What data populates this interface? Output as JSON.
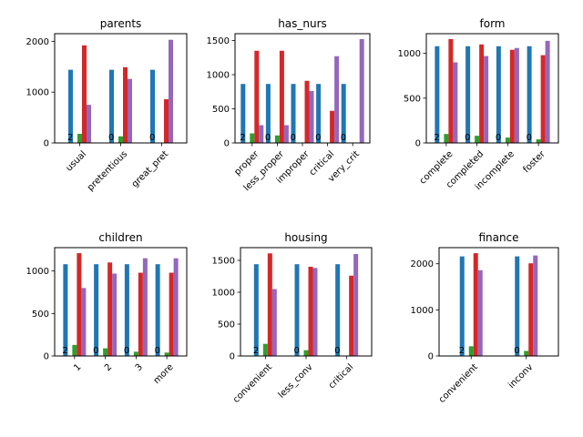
{
  "chart_data": [
    {
      "type": "bar",
      "title": "parents",
      "categories": [
        "usual",
        "pretentious",
        "great_pret"
      ],
      "ylim": [
        0,
        2150
      ],
      "yticks": [
        0,
        1000,
        2000
      ],
      "series": [
        {
          "values": [
            1440,
            1440,
            1440
          ],
          "color": "#1f77b4"
        },
        {
          "values": [
            2,
            0,
            0
          ],
          "color": "#ff7f0e"
        },
        {
          "values": [
            180,
            130,
            0
          ],
          "color": "#2ca02c"
        },
        {
          "values": [
            1920,
            1490,
            860
          ],
          "color": "#d62728"
        },
        {
          "values": [
            750,
            1260,
            2030
          ],
          "color": "#9467bd"
        }
      ],
      "bar_labels": [
        {
          "category": 0,
          "text": "2"
        },
        {
          "category": 1,
          "text": "0"
        },
        {
          "category": 2,
          "text": "0"
        }
      ]
    },
    {
      "type": "bar",
      "title": "has_nurs",
      "categories": [
        "proper",
        "less_proper",
        "improper",
        "critical",
        "very_crit"
      ],
      "ylim": [
        0,
        1600
      ],
      "yticks": [
        0,
        500,
        1000,
        1500
      ],
      "series": [
        {
          "values": [
            864,
            864,
            864,
            864,
            864
          ],
          "color": "#1f77b4"
        },
        {
          "values": [
            2,
            0,
            0,
            0,
            0
          ],
          "color": "#ff7f0e"
        },
        {
          "values": [
            140,
            110,
            0,
            0,
            0
          ],
          "color": "#2ca02c"
        },
        {
          "values": [
            1350,
            1350,
            910,
            470,
            0
          ],
          "color": "#d62728"
        },
        {
          "values": [
            260,
            260,
            760,
            1270,
            1520
          ],
          "color": "#9467bd"
        }
      ],
      "bar_labels": [
        {
          "category": 0,
          "text": "2"
        },
        {
          "category": 1,
          "text": "0"
        },
        {
          "category": 2,
          "text": "0"
        },
        {
          "category": 3,
          "text": "0"
        },
        {
          "category": 4,
          "text": "0"
        }
      ]
    },
    {
      "type": "bar",
      "title": "form",
      "categories": [
        "complete",
        "completed",
        "incomplete",
        "foster"
      ],
      "ylim": [
        0,
        1220
      ],
      "yticks": [
        0,
        500,
        1000
      ],
      "series": [
        {
          "values": [
            1080,
            1080,
            1080,
            1080
          ],
          "color": "#1f77b4"
        },
        {
          "values": [
            2,
            0,
            0,
            0
          ],
          "color": "#ff7f0e"
        },
        {
          "values": [
            100,
            80,
            60,
            40
          ],
          "color": "#2ca02c"
        },
        {
          "values": [
            1160,
            1100,
            1040,
            980
          ],
          "color": "#d62728"
        },
        {
          "values": [
            900,
            970,
            1060,
            1140
          ],
          "color": "#9467bd"
        }
      ],
      "bar_labels": [
        {
          "category": 0,
          "text": "2"
        },
        {
          "category": 1,
          "text": "0"
        },
        {
          "category": 2,
          "text": "0"
        },
        {
          "category": 3,
          "text": "0"
        }
      ]
    },
    {
      "type": "bar",
      "title": "children",
      "categories": [
        "1",
        "2",
        "3",
        "more"
      ],
      "ylim": [
        0,
        1275
      ],
      "yticks": [
        0,
        500,
        1000
      ],
      "series": [
        {
          "values": [
            1080,
            1080,
            1080,
            1080
          ],
          "color": "#1f77b4"
        },
        {
          "values": [
            2,
            0,
            0,
            0
          ],
          "color": "#ff7f0e"
        },
        {
          "values": [
            130,
            90,
            50,
            40
          ],
          "color": "#2ca02c"
        },
        {
          "values": [
            1210,
            1100,
            980,
            980
          ],
          "color": "#d62728"
        },
        {
          "values": [
            800,
            970,
            1150,
            1150
          ],
          "color": "#9467bd"
        }
      ],
      "bar_labels": [
        {
          "category": 0,
          "text": "2"
        },
        {
          "category": 1,
          "text": "0"
        },
        {
          "category": 2,
          "text": "0"
        },
        {
          "category": 3,
          "text": "0"
        }
      ]
    },
    {
      "type": "bar",
      "title": "housing",
      "categories": [
        "convenient",
        "less_conv",
        "critical"
      ],
      "ylim": [
        0,
        1700
      ],
      "yticks": [
        0,
        500,
        1000,
        1500
      ],
      "series": [
        {
          "values": [
            1440,
            1440,
            1440
          ],
          "color": "#1f77b4"
        },
        {
          "values": [
            2,
            0,
            0
          ],
          "color": "#ff7f0e"
        },
        {
          "values": [
            190,
            90,
            0
          ],
          "color": "#2ca02c"
        },
        {
          "values": [
            1610,
            1400,
            1260
          ],
          "color": "#d62728"
        },
        {
          "values": [
            1050,
            1380,
            1600
          ],
          "color": "#9467bd"
        }
      ],
      "bar_labels": [
        {
          "category": 0,
          "text": "2"
        },
        {
          "category": 1,
          "text": "0"
        },
        {
          "category": 2,
          "text": "0"
        }
      ]
    },
    {
      "type": "bar",
      "title": "finance",
      "categories": [
        "convenient",
        "inconv"
      ],
      "ylim": [
        0,
        2350
      ],
      "yticks": [
        0,
        1000,
        2000
      ],
      "series": [
        {
          "values": [
            2160,
            2160
          ],
          "color": "#1f77b4"
        },
        {
          "values": [
            2,
            0
          ],
          "color": "#ff7f0e"
        },
        {
          "values": [
            210,
            110
          ],
          "color": "#2ca02c"
        },
        {
          "values": [
            2230,
            2010
          ],
          "color": "#d62728"
        },
        {
          "values": [
            1860,
            2180
          ],
          "color": "#9467bd"
        }
      ],
      "bar_labels": [
        {
          "category": 0,
          "text": "2"
        },
        {
          "category": 1,
          "text": "0"
        }
      ]
    }
  ]
}
